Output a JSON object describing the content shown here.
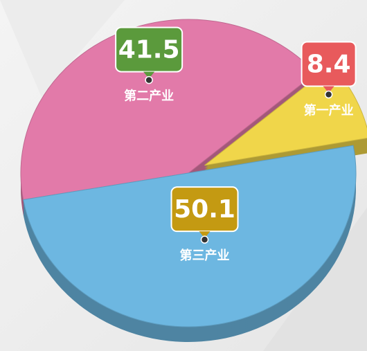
{
  "chart_data": {
    "type": "pie",
    "categories": [
      "第一产业",
      "第二产业",
      "第三产业"
    ],
    "values": [
      8.4,
      41.5,
      50.1
    ],
    "colors": [
      "#f0d64a",
      "#e27aa9",
      "#6db7e1"
    ],
    "label_colors": [
      "#e85a5c",
      "#5b9a3c",
      "#c49a12"
    ],
    "exploded": [
      true,
      false,
      false
    ]
  }
}
